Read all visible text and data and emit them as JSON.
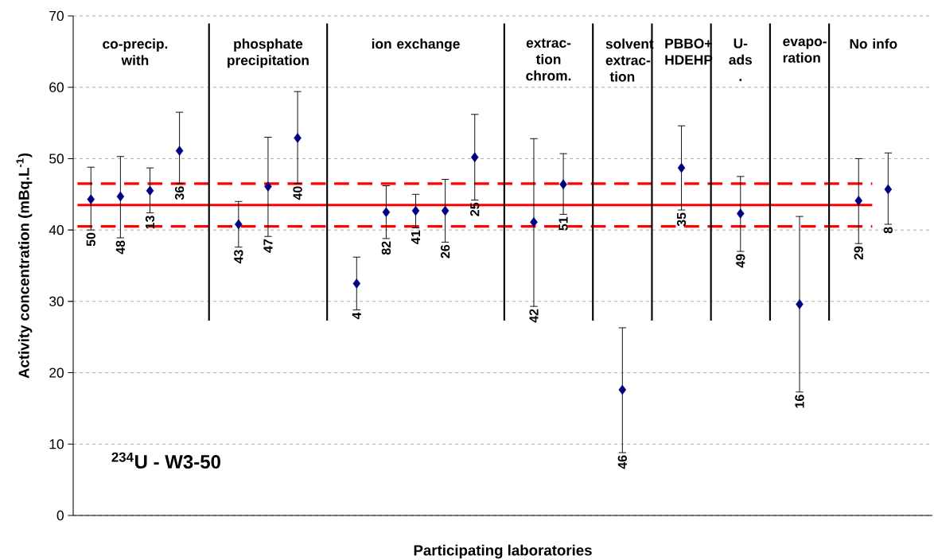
{
  "chart_data": {
    "type": "scatter",
    "xlabel": "Participating laboratories",
    "ylabel": "Activity concentration (mBq.L$^{-1}$)",
    "categories": [
      "50",
      "48",
      "13",
      "36",
      null,
      "43",
      "47",
      "40",
      null,
      "4",
      "82",
      "41",
      "26",
      "25",
      null,
      "42",
      "51",
      null,
      "46",
      null,
      "35",
      null,
      "49",
      null,
      "16",
      null,
      "29",
      "8"
    ],
    "values": [
      44.3,
      44.7,
      45.5,
      51.1,
      null,
      40.8,
      46.1,
      52.9,
      null,
      32.5,
      42.5,
      42.7,
      42.7,
      50.2,
      null,
      41.1,
      46.4,
      null,
      17.6,
      null,
      48.7,
      null,
      42.3,
      null,
      29.6,
      null,
      44.1,
      45.7
    ],
    "errors": [
      [
        40.0,
        48.8
      ],
      [
        38.9,
        50.3
      ],
      [
        42.4,
        48.7
      ],
      [
        46.5,
        56.5
      ],
      null,
      [
        37.6,
        44.0
      ],
      [
        39.1,
        53.0
      ],
      [
        46.5,
        59.4
      ],
      null,
      [
        28.8,
        36.2
      ],
      [
        38.8,
        46.2
      ],
      [
        40.3,
        45.0
      ],
      [
        38.3,
        47.1
      ],
      [
        44.2,
        56.2
      ],
      null,
      [
        29.3,
        52.8
      ],
      [
        42.2,
        50.7
      ],
      null,
      [
        8.8,
        26.3
      ],
      null,
      [
        42.8,
        54.6
      ],
      null,
      [
        37.0,
        47.5
      ],
      null,
      [
        17.3,
        41.9
      ],
      null,
      [
        38.1,
        50.0
      ],
      [
        40.8,
        50.8
      ]
    ],
    "color": "#000080",
    "marker": "diamond",
    "ylim": [
      0,
      70
    ],
    "yticks": [
      0,
      10,
      20,
      30,
      40,
      50,
      60,
      70
    ],
    "grid": "y",
    "ref_lines": [
      {
        "axis": "y",
        "value": 43.5,
        "color": "#ff0000",
        "line_style": "solid"
      },
      {
        "axis": "y",
        "value": 46.5,
        "color": "#ff0000",
        "line_style": "dashed"
      },
      {
        "axis": "y",
        "value": 40.5,
        "color": "#ff0000",
        "line_style": "dashed"
      }
    ],
    "annotations": [
      "co-precip. with",
      "phosphate precipitation",
      "ion exchange",
      "extrac-tion chrom.",
      "solvent extrac-tion",
      "PBBO+ HDEHP",
      "U-ads .",
      "evapo-ration",
      "No info",
      "$^{234}$U - W3-50"
    ]
  }
}
